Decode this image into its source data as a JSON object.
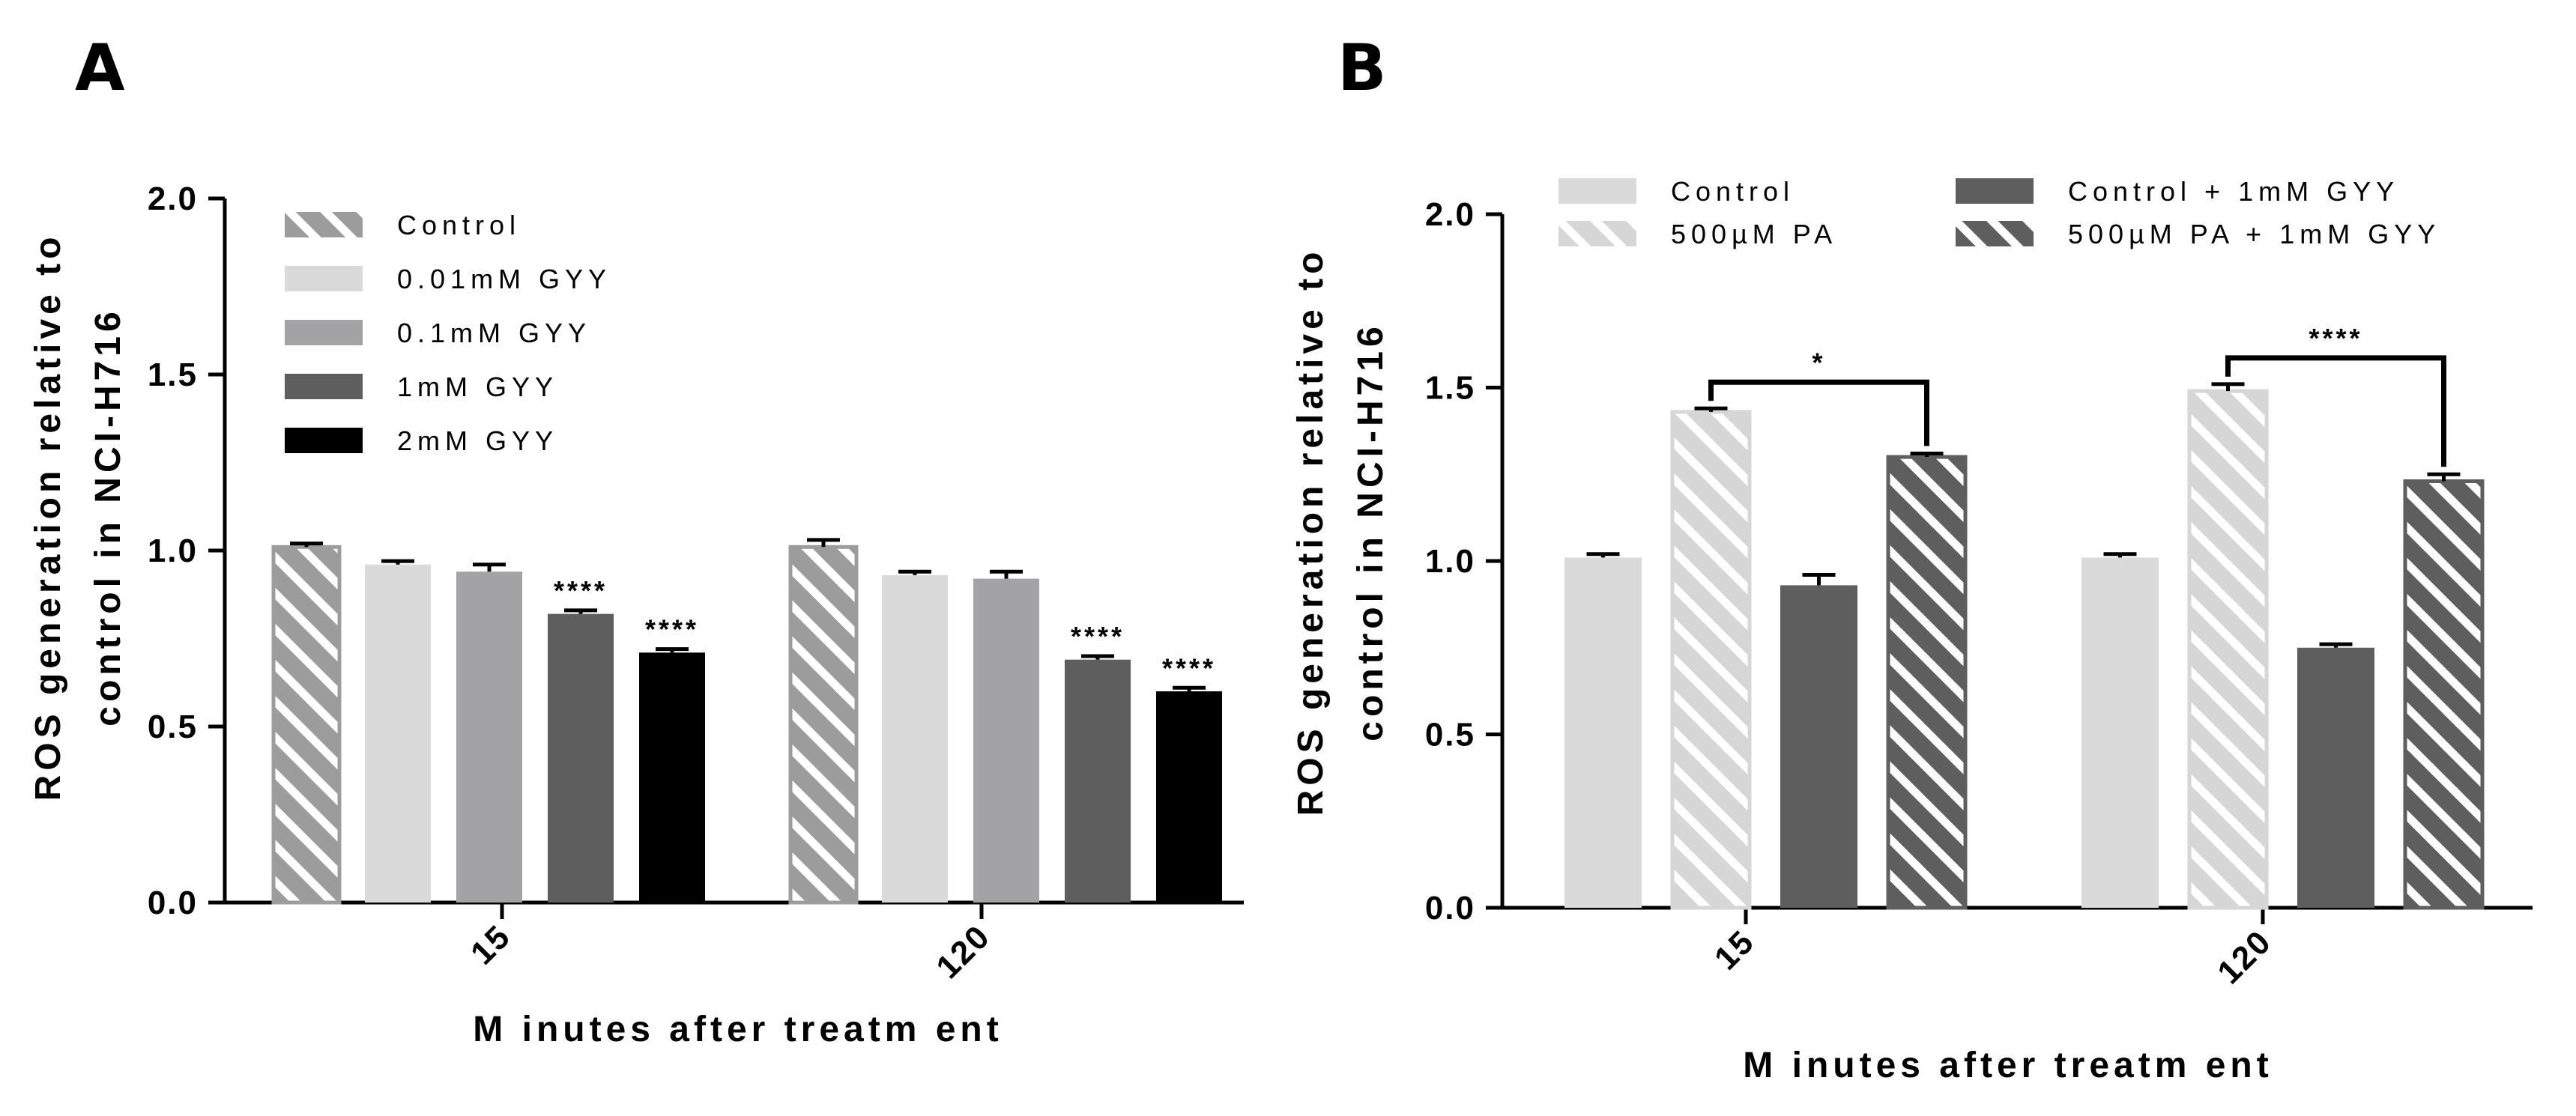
{
  "colors": {
    "stripe_light": "#d6d6d6",
    "stripe_dark": "#5e5e5e",
    "stripe_line": "#ffffff"
  },
  "chart_data": [
    {
      "panel": "A",
      "type": "bar",
      "xlabel": "M inutes after treatm ent",
      "ylabel_line1": "ROS generation relative to",
      "ylabel_line2": "control in NCI-H716",
      "ylim": [
        0,
        2.0
      ],
      "yticks": [
        0.0,
        0.5,
        1.0,
        1.5,
        2.0
      ],
      "ytick_labels": [
        "0.0",
        "0.5",
        "1.0",
        "1.5",
        "2.0"
      ],
      "categories": [
        "15",
        "120"
      ],
      "legend_position": "top-left",
      "series": [
        {
          "name": "Control",
          "color": "#9c9c9c",
          "pattern": "stripe",
          "values": [
            1.01,
            1.01
          ],
          "errors": [
            0.01,
            0.02
          ],
          "sig": [
            "",
            ""
          ]
        },
        {
          "name": "0.01mM GYY",
          "color": "#dadada",
          "pattern": "solid",
          "values": [
            0.96,
            0.93
          ],
          "errors": [
            0.01,
            0.01
          ],
          "sig": [
            "",
            ""
          ]
        },
        {
          "name": "0.1mM GYY",
          "color": "#a3a3a6",
          "pattern": "solid",
          "values": [
            0.94,
            0.92
          ],
          "errors": [
            0.02,
            0.02
          ],
          "sig": [
            "",
            ""
          ]
        },
        {
          "name": "1mM GYY",
          "color": "#5e5e5e",
          "pattern": "solid",
          "values": [
            0.82,
            0.69
          ],
          "errors": [
            0.01,
            0.01
          ],
          "sig": [
            "****",
            "****"
          ]
        },
        {
          "name": "2mM GYY",
          "color": "#000000",
          "pattern": "solid",
          "values": [
            0.71,
            0.6
          ],
          "errors": [
            0.01,
            0.01
          ],
          "sig": [
            "****",
            "****"
          ]
        }
      ],
      "comparisons": []
    },
    {
      "panel": "B",
      "type": "bar",
      "xlabel": "M inutes after treatm ent",
      "ylabel_line1": "ROS generation relative to",
      "ylabel_line2": "control in NCI-H716",
      "ylim": [
        0,
        2.0
      ],
      "yticks": [
        0.0,
        0.5,
        1.0,
        1.5,
        2.0
      ],
      "ytick_labels": [
        "0.0",
        "0.5",
        "1.0",
        "1.5",
        "2.0"
      ],
      "categories": [
        "15",
        "120"
      ],
      "legend_position": "top",
      "series": [
        {
          "name": "Control",
          "color": "#dadada",
          "pattern": "solid",
          "values": [
            1.01,
            1.01
          ],
          "errors": [
            0.01,
            0.01
          ],
          "sig": [
            "",
            ""
          ]
        },
        {
          "name": "500µM PA",
          "color": "#d6d6d6",
          "pattern": "stripe",
          "values": [
            1.43,
            1.49
          ],
          "errors": [
            0.01,
            0.02
          ],
          "sig": [
            "",
            ""
          ]
        },
        {
          "name": "Control + 1mM GYY",
          "color": "#5e5e5e",
          "pattern": "solid",
          "values": [
            0.93,
            0.75
          ],
          "errors": [
            0.03,
            0.01
          ],
          "sig": [
            "",
            ""
          ]
        },
        {
          "name": "500µM PA + 1mM GYY",
          "color": "#5e5e5e",
          "pattern": "stripe",
          "values": [
            1.3,
            1.23
          ],
          "errors": [
            0.01,
            0.02
          ],
          "sig": [
            "",
            ""
          ]
        }
      ],
      "comparisons": [
        {
          "category": 0,
          "from_series": 1,
          "to_series": 3,
          "label": "*"
        },
        {
          "category": 1,
          "from_series": 1,
          "to_series": 3,
          "label": "****"
        }
      ]
    }
  ]
}
